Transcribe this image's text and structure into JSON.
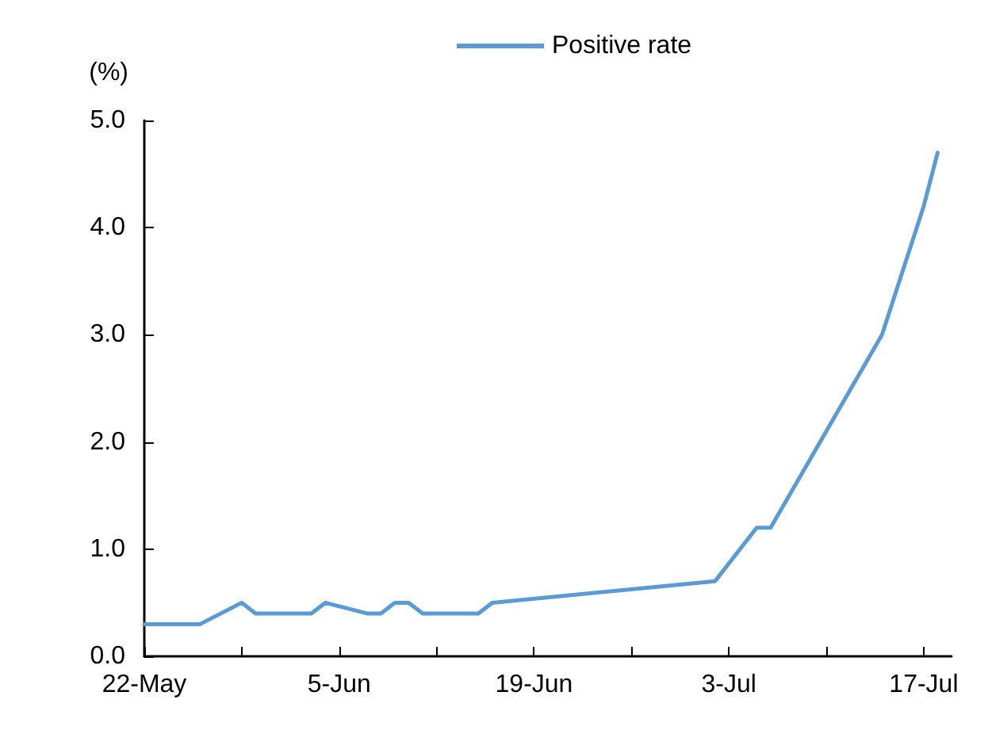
{
  "chart_data": {
    "type": "line",
    "ylabel": "(%)",
    "legend": "top",
    "x": [
      "--05-22",
      "--05-26",
      "--05-29",
      "--05-30",
      "--06-03",
      "--06-04",
      "--06-07",
      "--06-08",
      "--06-09",
      "--06-10",
      "--06-11",
      "--06-15",
      "--06-16",
      "--07-02",
      "--07-05",
      "--07-06",
      "--07-14",
      "--07-17",
      "--07-18"
    ],
    "series": [
      {
        "name": "Positive rate",
        "color": "#5b9bd5",
        "values": [
          0.3,
          0.3,
          0.5,
          0.4,
          0.4,
          0.5,
          0.4,
          0.4,
          0.5,
          0.5,
          0.4,
          0.4,
          0.5,
          0.7,
          1.2,
          1.2,
          3.0,
          4.2,
          4.7
        ]
      }
    ],
    "xlim": [
      "--05-22",
      "--07-19"
    ],
    "xticks": [
      {
        "value": "--05-22",
        "label": "22-May"
      },
      {
        "value": "--05-29",
        "label": null
      },
      {
        "value": "--06-05",
        "label": "5-Jun"
      },
      {
        "value": "--06-12",
        "label": null
      },
      {
        "value": "--06-19",
        "label": "19-Jun"
      },
      {
        "value": "--06-26",
        "label": null
      },
      {
        "value": "--07-03",
        "label": "3-Jul"
      },
      {
        "value": "--07-10",
        "label": null
      },
      {
        "value": "--07-17",
        "label": "17-Jul"
      }
    ],
    "ylim": [
      0,
      5
    ],
    "yticks": [
      {
        "value": 0,
        "label": "0.0"
      },
      {
        "value": 1,
        "label": "1.0"
      },
      {
        "value": 2,
        "label": "2.0"
      },
      {
        "value": 3,
        "label": "3.0"
      },
      {
        "value": 4,
        "label": "4.0"
      },
      {
        "value": 5,
        "label": "5.0"
      }
    ],
    "grid": false,
    "marker": "none",
    "line_style": "solid"
  }
}
